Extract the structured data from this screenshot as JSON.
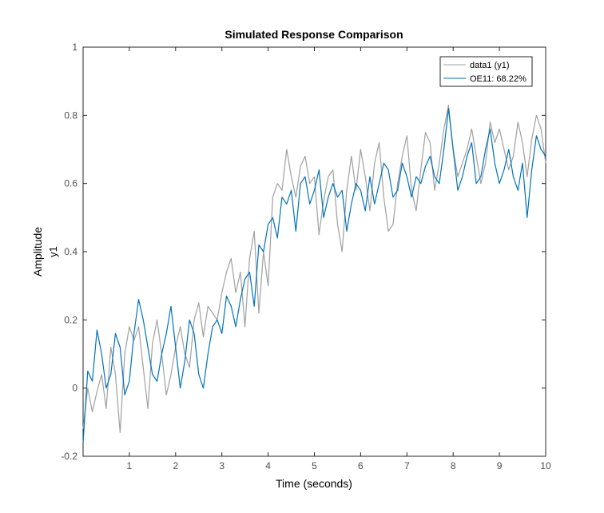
{
  "chart_data": {
    "type": "line",
    "title": "Simulated Response Comparison",
    "xlabel": "Time (seconds)",
    "ylabel": "Amplitude",
    "channel_label": "y1",
    "xlim": [
      0,
      10
    ],
    "ylim": [
      -0.2,
      1
    ],
    "x_ticks": [
      "1",
      "2",
      "3",
      "4",
      "5",
      "6",
      "7",
      "8",
      "9",
      "10"
    ],
    "y_ticks": [
      "-0.2",
      "0",
      "0.2",
      "0.4",
      "0.6",
      "0.8",
      "1"
    ],
    "x_tick_values": [
      1,
      2,
      3,
      4,
      5,
      6,
      7,
      8,
      9,
      10
    ],
    "y_tick_values": [
      -0.2,
      0,
      0.2,
      0.4,
      0.6,
      0.8,
      1
    ],
    "grid": false,
    "legend_position": "top-right",
    "series": [
      {
        "name": "data1 (y1)",
        "color": "#a0a0a0",
        "x": [
          0,
          0.1,
          0.2,
          0.3,
          0.4,
          0.5,
          0.6,
          0.7,
          0.8,
          0.9,
          1.0,
          1.1,
          1.2,
          1.3,
          1.4,
          1.5,
          1.6,
          1.7,
          1.8,
          1.9,
          2.0,
          2.1,
          2.2,
          2.3,
          2.4,
          2.5,
          2.6,
          2.7,
          2.8,
          2.9,
          3.0,
          3.1,
          3.2,
          3.3,
          3.4,
          3.5,
          3.6,
          3.7,
          3.8,
          3.9,
          4.0,
          4.1,
          4.2,
          4.3,
          4.4,
          4.5,
          4.6,
          4.7,
          4.8,
          4.9,
          5.0,
          5.1,
          5.2,
          5.3,
          5.4,
          5.5,
          5.6,
          5.7,
          5.8,
          5.9,
          6.0,
          6.1,
          6.2,
          6.3,
          6.4,
          6.5,
          6.6,
          6.7,
          6.8,
          6.9,
          7.0,
          7.1,
          7.2,
          7.3,
          7.4,
          7.5,
          7.6,
          7.7,
          7.8,
          7.9,
          8.0,
          8.1,
          8.2,
          8.3,
          8.4,
          8.5,
          8.6,
          8.7,
          8.8,
          8.9,
          9.0,
          9.1,
          9.2,
          9.3,
          9.4,
          9.5,
          9.6,
          9.7,
          9.8,
          9.9,
          10.0
        ],
        "values": [
          -0.12,
          0.0,
          -0.07,
          -0.01,
          0.04,
          -0.06,
          0.12,
          0.04,
          -0.13,
          0.1,
          0.18,
          0.14,
          0.18,
          0.06,
          -0.06,
          0.13,
          0.2,
          0.1,
          -0.02,
          0.04,
          0.12,
          0.18,
          0.1,
          0.06,
          0.2,
          0.25,
          0.15,
          0.24,
          0.22,
          0.2,
          0.28,
          0.34,
          0.38,
          0.28,
          0.34,
          0.18,
          0.38,
          0.46,
          0.22,
          0.4,
          0.3,
          0.56,
          0.6,
          0.58,
          0.7,
          0.62,
          0.56,
          0.65,
          0.68,
          0.6,
          0.62,
          0.45,
          0.55,
          0.62,
          0.64,
          0.48,
          0.4,
          0.58,
          0.68,
          0.58,
          0.7,
          0.62,
          0.52,
          0.66,
          0.72,
          0.56,
          0.46,
          0.48,
          0.6,
          0.68,
          0.74,
          0.58,
          0.52,
          0.64,
          0.75,
          0.72,
          0.58,
          0.66,
          0.76,
          0.83,
          0.7,
          0.62,
          0.66,
          0.7,
          0.76,
          0.68,
          0.6,
          0.66,
          0.78,
          0.72,
          0.76,
          0.7,
          0.64,
          0.68,
          0.78,
          0.72,
          0.62,
          0.73,
          0.8,
          0.76,
          0.66
        ]
      },
      {
        "name": "OE11: 68.22%",
        "color": "#0072bd",
        "x": [
          0,
          0.1,
          0.2,
          0.3,
          0.4,
          0.5,
          0.6,
          0.7,
          0.8,
          0.9,
          1.0,
          1.1,
          1.2,
          1.3,
          1.4,
          1.5,
          1.6,
          1.7,
          1.8,
          1.9,
          2.0,
          2.1,
          2.2,
          2.3,
          2.4,
          2.5,
          2.6,
          2.7,
          2.8,
          2.9,
          3.0,
          3.1,
          3.2,
          3.3,
          3.4,
          3.5,
          3.6,
          3.7,
          3.8,
          3.9,
          4.0,
          4.1,
          4.2,
          4.3,
          4.4,
          4.5,
          4.6,
          4.7,
          4.8,
          4.9,
          5.0,
          5.1,
          5.2,
          5.3,
          5.4,
          5.5,
          5.6,
          5.7,
          5.8,
          5.9,
          6.0,
          6.1,
          6.2,
          6.3,
          6.4,
          6.5,
          6.6,
          6.7,
          6.8,
          6.9,
          7.0,
          7.1,
          7.2,
          7.3,
          7.4,
          7.5,
          7.6,
          7.7,
          7.8,
          7.9,
          8.0,
          8.1,
          8.2,
          8.3,
          8.4,
          8.5,
          8.6,
          8.7,
          8.8,
          8.9,
          9.0,
          9.1,
          9.2,
          9.3,
          9.4,
          9.5,
          9.6,
          9.7,
          9.8,
          9.9,
          10.0
        ],
        "values": [
          -0.16,
          0.05,
          0.02,
          0.17,
          0.1,
          0.0,
          0.04,
          0.16,
          0.12,
          -0.02,
          0.02,
          0.16,
          0.26,
          0.2,
          0.12,
          0.04,
          0.02,
          0.1,
          0.16,
          0.24,
          0.12,
          0.0,
          0.08,
          0.2,
          0.16,
          0.04,
          0.0,
          0.1,
          0.18,
          0.2,
          0.16,
          0.27,
          0.24,
          0.18,
          0.26,
          0.32,
          0.34,
          0.24,
          0.42,
          0.4,
          0.48,
          0.5,
          0.44,
          0.56,
          0.54,
          0.58,
          0.46,
          0.6,
          0.62,
          0.54,
          0.58,
          0.64,
          0.5,
          0.56,
          0.6,
          0.56,
          0.58,
          0.46,
          0.54,
          0.6,
          0.58,
          0.52,
          0.62,
          0.54,
          0.6,
          0.66,
          0.64,
          0.56,
          0.58,
          0.66,
          0.62,
          0.56,
          0.62,
          0.6,
          0.65,
          0.68,
          0.62,
          0.6,
          0.7,
          0.82,
          0.7,
          0.58,
          0.62,
          0.68,
          0.72,
          0.6,
          0.62,
          0.7,
          0.76,
          0.66,
          0.6,
          0.64,
          0.7,
          0.62,
          0.58,
          0.66,
          0.5,
          0.64,
          0.74,
          0.7,
          0.68
        ]
      }
    ]
  }
}
